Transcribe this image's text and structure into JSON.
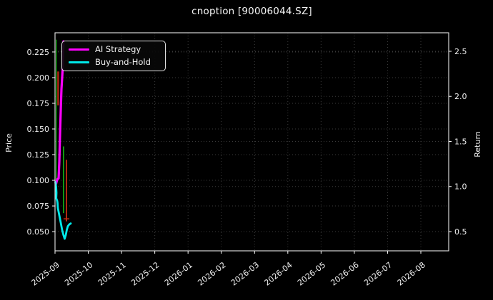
{
  "title": "cnoption [90006044.SZ]",
  "axes": {
    "left_label": "Price",
    "right_label": "Return"
  },
  "legend": {
    "items": [
      {
        "label": "AI Strategy",
        "color": "#ff00ff"
      },
      {
        "label": "Buy-and-Hold",
        "color": "#00e8e8"
      }
    ]
  },
  "chart_data": {
    "type": "line",
    "title": "cnoption [90006044.SZ]",
    "background": "#000000",
    "text_color": "#f0f0f0",
    "grid_color": "#3b3b3b",
    "frame_color": "#e8e8e8",
    "legend_position": "upper left",
    "grid": true,
    "x_ticks": [
      "2025-09",
      "2025-10",
      "2025-11",
      "2025-12",
      "2026-01",
      "2026-02",
      "2026-03",
      "2026-04",
      "2026-05",
      "2026-06",
      "2026-07",
      "2026-08"
    ],
    "left_axis": {
      "label": "Price",
      "ticks": [
        0.225,
        0.2,
        0.175,
        0.15,
        0.125,
        0.1,
        0.075,
        0.05
      ],
      "range": [
        0.0313,
        0.2437
      ]
    },
    "right_axis": {
      "label": "Return",
      "ticks": [
        2.5,
        2.0,
        1.5,
        1.0,
        0.5
      ],
      "range": [
        0.2865,
        2.7055
      ]
    },
    "price_bars": [
      {
        "day": 1.3,
        "high": 0.237,
        "low": 0.095,
        "color": "#0a7d0a",
        "width": 1.7
      },
      {
        "day": 2.9,
        "high": 0.206,
        "low": 0.173,
        "color": "#a8240f",
        "width": 2.6
      },
      {
        "day": 7.8,
        "high": 0.133,
        "low": 0.068,
        "color": "#12a312",
        "width": 1.8
      },
      {
        "day": 10.5,
        "high": 0.12,
        "low": 0.06,
        "color": "#c62c12",
        "width": 1.8,
        "cross_tick": {
          "value": 0.0625,
          "day_start": 7.8,
          "day_end": 13.1
        }
      }
    ],
    "series": [
      {
        "name": "AI Strategy",
        "axis": "right",
        "color": "#ff00ff",
        "width": 3.2,
        "points": [
          [
            1.0,
            1.03
          ],
          [
            2.0,
            1.08
          ],
          [
            3.3,
            1.09
          ],
          [
            3.9,
            1.27
          ],
          [
            4.6,
            1.57
          ],
          [
            5.2,
            1.84
          ],
          [
            5.9,
            2.08
          ],
          [
            6.9,
            2.29
          ],
          [
            7.5,
            2.5
          ],
          [
            7.8,
            2.61
          ]
        ]
      },
      {
        "name": "Buy-and-Hold",
        "axis": "right",
        "color": "#00e8e8",
        "width": 2.8,
        "points": [
          [
            0.3,
            1.05
          ],
          [
            1.0,
            1.0
          ],
          [
            1.3,
            0.93
          ],
          [
            1.1,
            0.87
          ],
          [
            2.0,
            0.84
          ],
          [
            2.3,
            0.82
          ],
          [
            2.6,
            0.76
          ],
          [
            3.9,
            0.68
          ],
          [
            5.2,
            0.6
          ],
          [
            6.5,
            0.52
          ],
          [
            7.8,
            0.46
          ],
          [
            8.8,
            0.42
          ],
          [
            9.8,
            0.46
          ],
          [
            10.8,
            0.52
          ],
          [
            11.8,
            0.56
          ],
          [
            13.1,
            0.58
          ],
          [
            14.4,
            0.59
          ]
        ]
      }
    ]
  }
}
